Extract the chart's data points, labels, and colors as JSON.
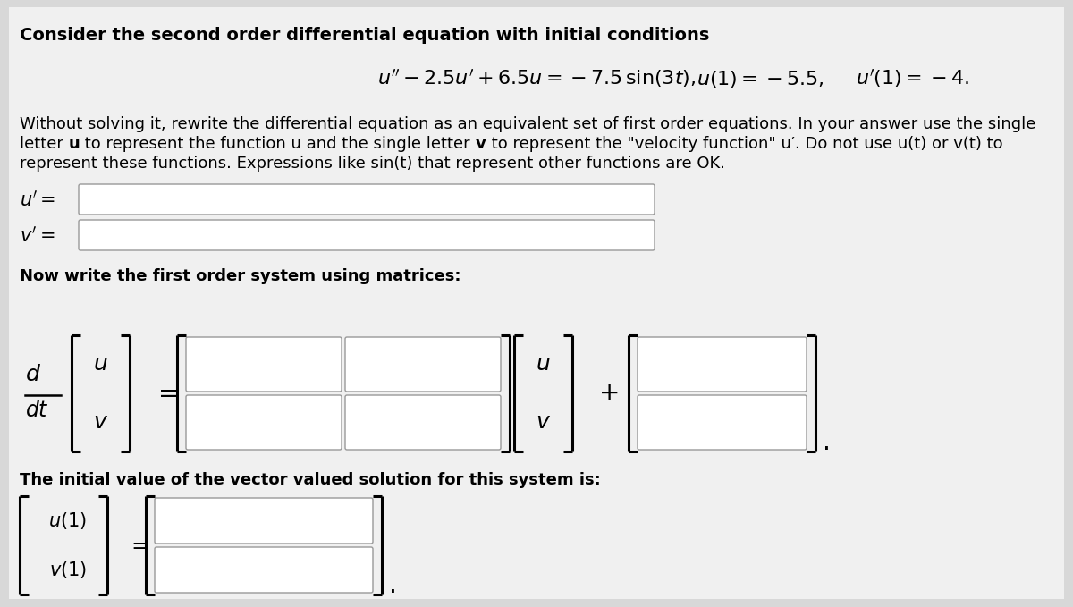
{
  "bg_color": "#d8d8d8",
  "panel_color": "#f0f0f0",
  "box_fill": "#ffffff",
  "box_edge": "#aaaaaa",
  "title": "Consider the second order differential equation with initial conditions",
  "para_line1": "Without solving it, rewrite the differential equation as an equivalent set of first order equations. In your answer use the single",
  "para_line2a": "letter ",
  "para_bold_u": "u",
  "para_line2b": " to represent the function u and the single letter ",
  "para_bold_v": "v",
  "para_line2c": " to represent the \"velocity function\" u′. Do not use u(t) or v(t) to",
  "para_line3": "represent these functions. Expressions like sin(t) that represent other functions are OK.",
  "matrix_intro": "Now write the first order system using matrices:",
  "ivp_intro": "The initial value of the vector valued solution for this system is:",
  "fs_title": 14,
  "fs_body": 13,
  "fs_math": 15
}
